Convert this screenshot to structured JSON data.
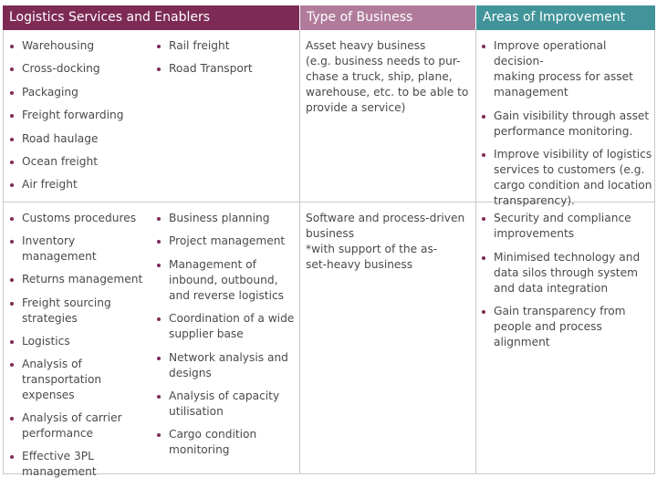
{
  "headers": {
    "services": "Logistics Services and Enablers",
    "business": "Type of Business",
    "improvement": "Areas of Improvement"
  },
  "rows": [
    {
      "services_col1": [
        "Warehousing",
        "Cross-docking",
        "Packaging",
        "Freight forwarding",
        "Road haulage",
        "Ocean freight",
        "Air freight"
      ],
      "services_col2": [
        "Rail freight",
        "Road Transport"
      ],
      "business_lines": [
        "Asset heavy business",
        "(e.g. business needs to pur-",
        "chase a truck, ship, plane,",
        "warehouse, etc. to be able to",
        "provide a service)"
      ],
      "improvements": [
        [
          "Improve operational decision-",
          "making process for asset",
          "management"
        ],
        [
          " Gain visibility through asset",
          "performance monitoring."
        ],
        [
          "Improve visibility of logistics",
          "services to customers (e.g.",
          "cargo condition and location",
          "transparency)."
        ]
      ]
    },
    {
      "services_col1": [
        [
          "Customs procedures"
        ],
        [
          "Inventory management"
        ],
        [
          "Returns management"
        ],
        [
          "Freight sourcing",
          "strategies"
        ],
        [
          "Logistics"
        ],
        [
          "Analysis of",
          "transportation",
          "expenses"
        ],
        [
          "Analysis of carrier",
          "performance"
        ],
        [
          "Effective 3PL",
          "management"
        ]
      ],
      "services_col2": [
        [
          "Business planning"
        ],
        [
          "Project management"
        ],
        [
          "Management of",
          "inbound, outbound,",
          "and reverse logistics"
        ],
        [
          "Coordination of a wide",
          "supplier base"
        ],
        [
          "Network analysis and",
          "designs"
        ],
        [
          "Analysis of capacity",
          "utilisation"
        ],
        [
          "Cargo condition",
          "monitoring"
        ]
      ],
      "business_lines": [
        "Software and process-driven",
        "business",
        "*with support of the as-",
        "set-heavy business"
      ],
      "improvements": [
        [
          "Security and compliance",
          "improvements"
        ],
        [
          "Minimised technology and",
          "data silos through system",
          "and data integration"
        ],
        [
          "Gain transparency from",
          "people and process",
          "alignment"
        ]
      ]
    }
  ]
}
